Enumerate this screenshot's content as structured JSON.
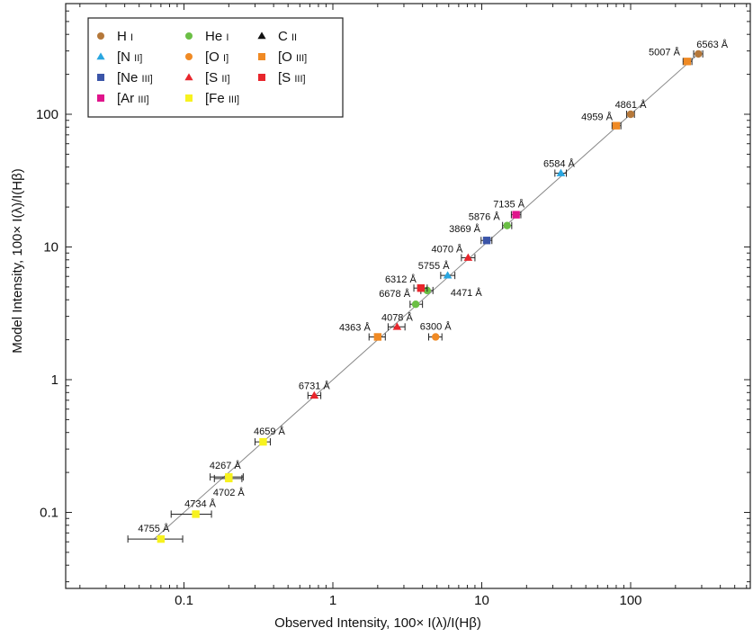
{
  "chart_data": {
    "type": "scatter",
    "xlabel": "Observed Intensity, 100× I(λ)/I(Hβ)",
    "ylabel": "Model Intensity, 100× I(λ)/I(Hβ)",
    "xscale": "log",
    "yscale": "log",
    "xlim": [
      0.02,
      600
    ],
    "ylim": [
      0.03,
      600
    ],
    "xticks": [
      {
        "value": 0.1,
        "label": "0.1"
      },
      {
        "value": 1,
        "label": "1"
      },
      {
        "value": 10,
        "label": "10"
      },
      {
        "value": 100,
        "label": "100"
      }
    ],
    "yticks": [
      {
        "value": 0.1,
        "label": "0.1"
      },
      {
        "value": 1,
        "label": "1"
      },
      {
        "value": 10,
        "label": "10"
      },
      {
        "value": 100,
        "label": "100"
      }
    ],
    "reference_line": "y = x",
    "grid": false,
    "legend_position": "top-left",
    "series": [
      {
        "name": "H I",
        "label_main": "H",
        "label_ion": "I",
        "color": "#b5783a",
        "marker": "circle",
        "points": [
          {
            "id": "6563 Å",
            "x": 285,
            "y": 285,
            "xerr": [
              265,
              305
            ]
          },
          {
            "id": "4861 Å",
            "x": 100,
            "y": 100,
            "xerr": [
              94,
              106
            ]
          }
        ]
      },
      {
        "name": "He I",
        "label_main": "He",
        "label_ion": "I",
        "color": "#6bbf45",
        "marker": "circle",
        "points": [
          {
            "id": "5876 Å",
            "x": 14.8,
            "y": 14.5,
            "xerr": [
              13.8,
              15.9
            ]
          },
          {
            "id": "4471 Å",
            "x": 4.3,
            "y": 4.7,
            "xerr": [
              3.9,
              4.7
            ]
          },
          {
            "id": "6678 Å",
            "x": 3.6,
            "y": 3.7,
            "xerr": [
              3.3,
              4.0
            ]
          }
        ]
      },
      {
        "name": "C II",
        "label_main": "C",
        "label_ion": "II",
        "color": "#111111",
        "marker": "triangle",
        "points": []
      },
      {
        "name": "[N II]",
        "label_main": "[N",
        "label_ion": "II]",
        "color": "#29a6e0",
        "marker": "triangle",
        "points": [
          {
            "id": "6584 Å",
            "x": 34,
            "y": 36,
            "xerr": [
              31,
              37
            ]
          },
          {
            "id": "5755 Å",
            "x": 5.9,
            "y": 6.1,
            "xerr": [
              5.3,
              6.6
            ]
          }
        ]
      },
      {
        "name": "[O I]",
        "label_main": "[O",
        "label_ion": "I]",
        "color": "#f08a24",
        "marker": "circle",
        "points": [
          {
            "id": "6300 Å",
            "x": 4.9,
            "y": 2.1,
            "xerr": [
              4.4,
              5.4
            ]
          }
        ]
      },
      {
        "name": "[O III]",
        "label_main": "[O",
        "label_ion": "III]",
        "color": "#f08a24",
        "marker": "square",
        "points": [
          {
            "id": "5007 Å",
            "x": 240,
            "y": 250,
            "xerr": [
              225,
              258
            ]
          },
          {
            "id": "4959 Å",
            "x": 80,
            "y": 82,
            "xerr": [
              75,
              86
            ]
          },
          {
            "id": "4363 Å",
            "x": 2.0,
            "y": 2.1,
            "xerr": [
              1.75,
              2.25
            ]
          }
        ]
      },
      {
        "name": "[Ne III]",
        "label_main": "[Ne",
        "label_ion": "III]",
        "color": "#3b55a8",
        "marker": "square",
        "points": [
          {
            "id": "3869 Å",
            "x": 10.8,
            "y": 11.2,
            "xerr": [
              9.9,
              11.7
            ]
          }
        ]
      },
      {
        "name": "[S II]",
        "label_main": "[S",
        "label_ion": "II]",
        "color": "#e8262c",
        "marker": "triangle",
        "points": [
          {
            "id": "4070 Å",
            "x": 8.1,
            "y": 8.3,
            "xerr": [
              7.3,
              9.0
            ]
          },
          {
            "id": "4078 Å",
            "x": 2.7,
            "y": 2.5,
            "xerr": [
              2.35,
              3.05
            ]
          },
          {
            "id": "6731 Å",
            "x": 0.75,
            "y": 0.76,
            "xerr": [
              0.68,
              0.83
            ]
          }
        ]
      },
      {
        "name": "[S III]",
        "label_main": "[S",
        "label_ion": "III]",
        "color": "#e8262c",
        "marker": "square",
        "points": [
          {
            "id": "6312 Å",
            "x": 3.9,
            "y": 4.9,
            "xerr": [
              3.5,
              4.3
            ]
          }
        ]
      },
      {
        "name": "[Ar III]",
        "label_main": "[Ar",
        "label_ion": "III]",
        "color": "#e0148c",
        "marker": "square",
        "points": [
          {
            "id": "7135 Å",
            "x": 17,
            "y": 17.5,
            "xerr": [
              15.8,
              18.3
            ]
          }
        ]
      },
      {
        "name": "[Fe III]",
        "label_main": "[Fe",
        "label_ion": "III]",
        "color": "#f7f21f",
        "marker": "square",
        "points": [
          {
            "id": "4659 Å",
            "x": 0.34,
            "y": 0.34,
            "xerr": [
              0.3,
              0.38
            ]
          },
          {
            "id": "4267 Å",
            "x": 0.2,
            "y": 0.185,
            "xerr": [
              0.15,
              0.25
            ]
          },
          {
            "id": "4702 Å",
            "x": 0.2,
            "y": 0.18,
            "xerr": [
              0.16,
              0.245
            ]
          },
          {
            "id": "4734 Å",
            "x": 0.12,
            "y": 0.097,
            "xerr": [
              0.082,
              0.153
            ]
          },
          {
            "id": "4755 Å",
            "x": 0.07,
            "y": 0.063,
            "xerr": [
              0.042,
              0.098
            ]
          }
        ]
      }
    ]
  }
}
